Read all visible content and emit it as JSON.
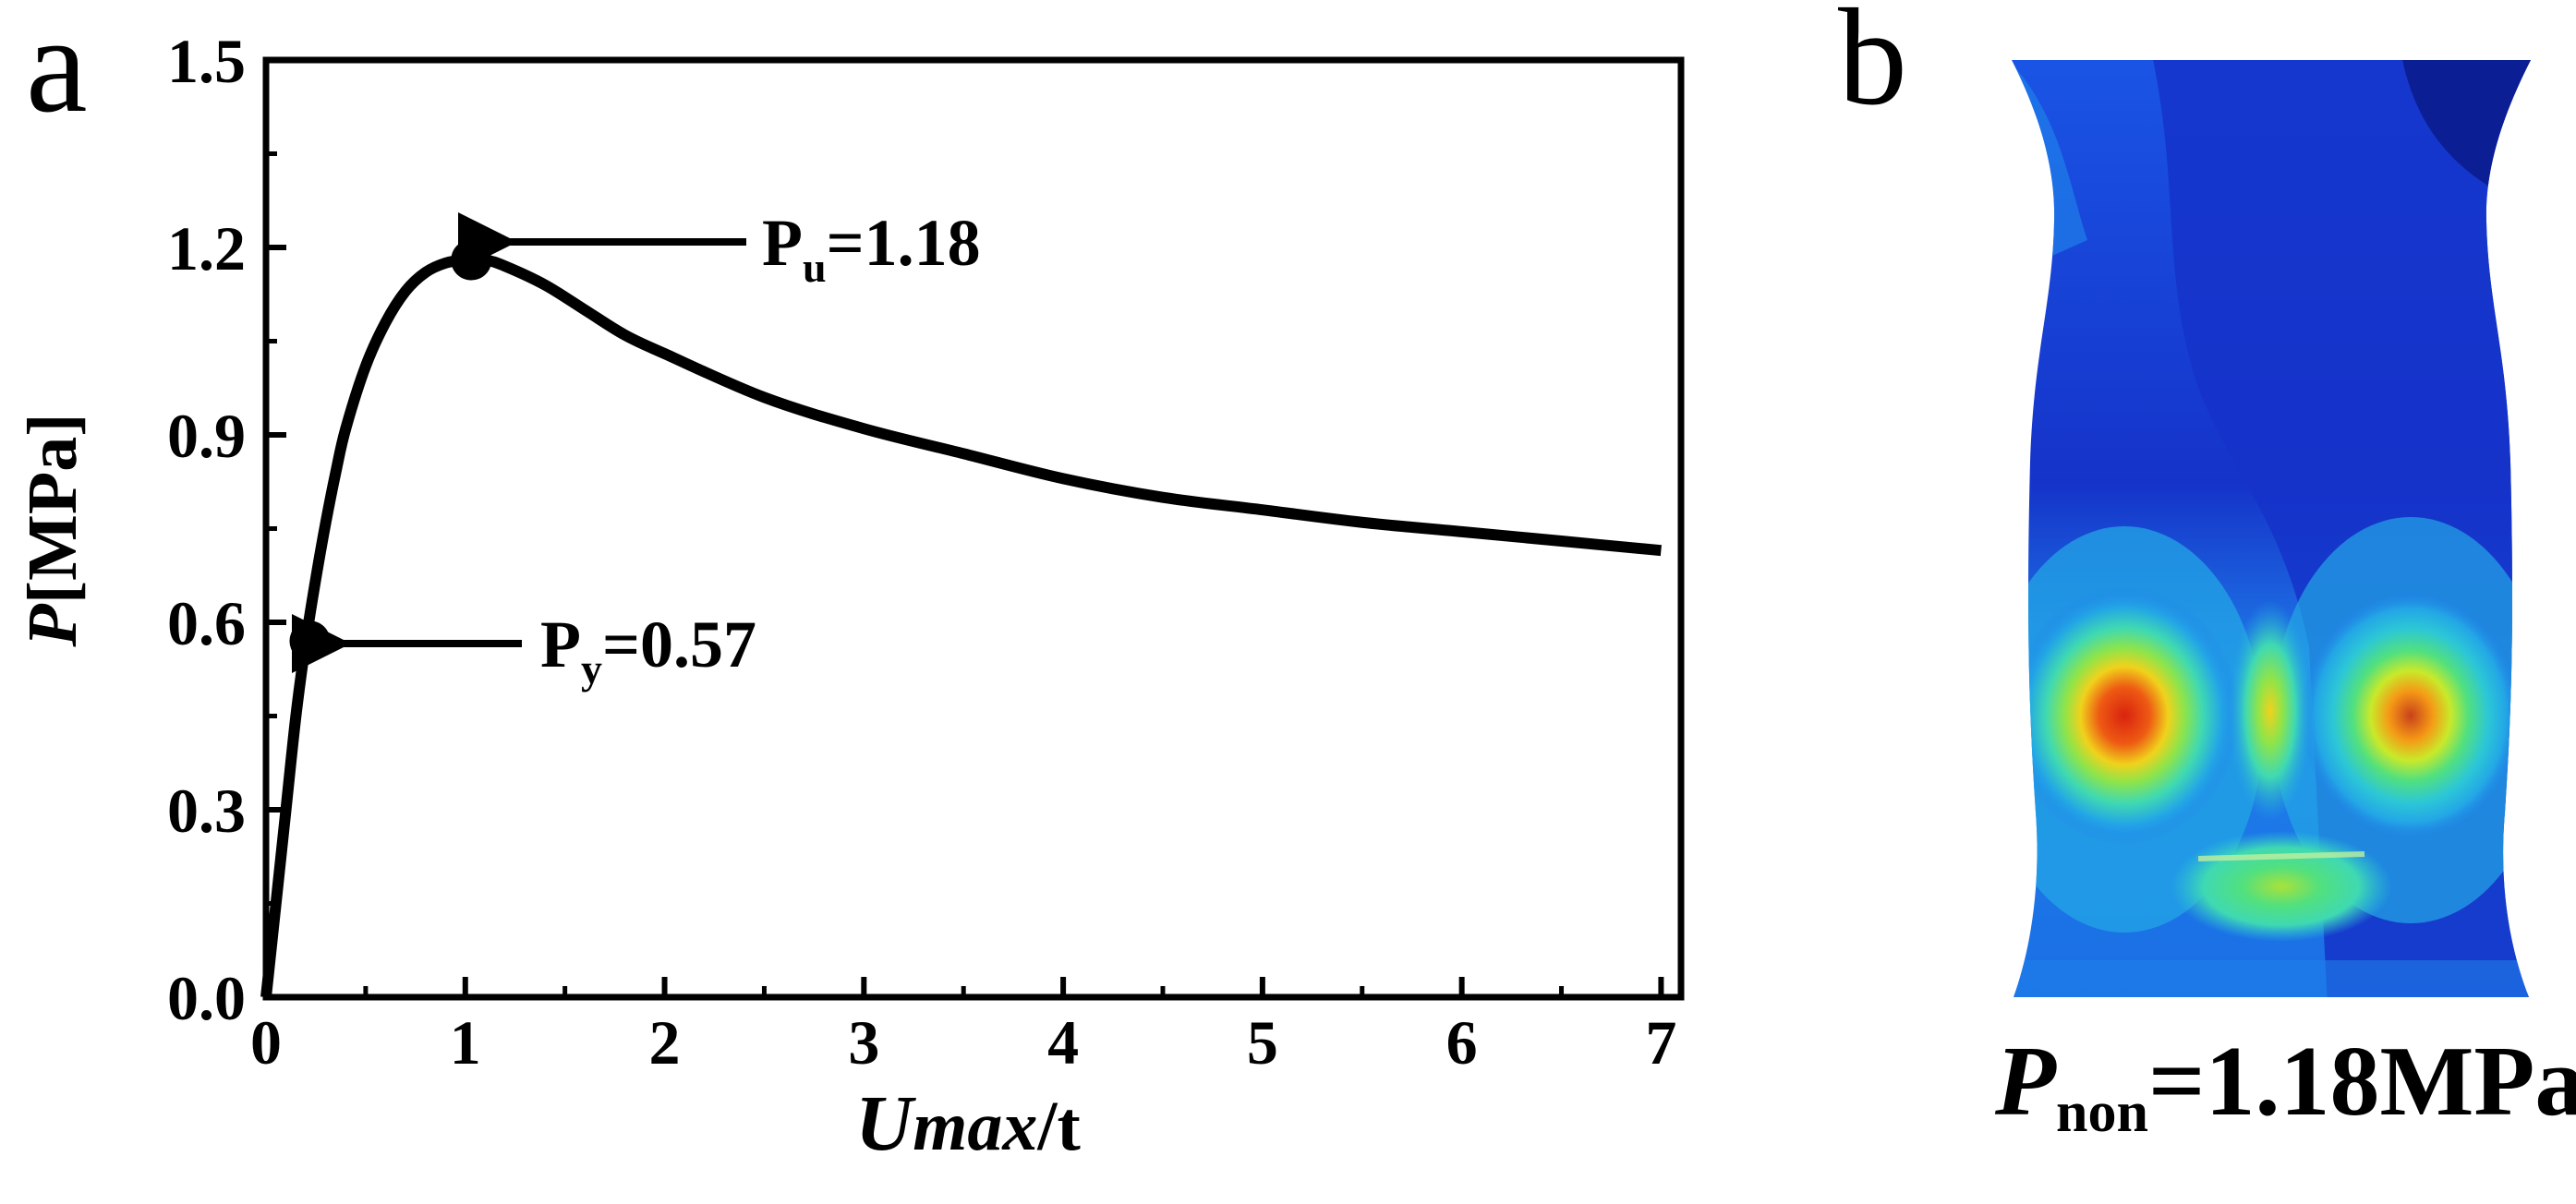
{
  "panels": {
    "a_label": "a",
    "b_label": "b"
  },
  "chart_data": {
    "type": "line",
    "x": [
      0,
      0.05,
      0.1,
      0.15,
      0.2,
      0.25,
      0.3,
      0.35,
      0.4,
      0.5,
      0.6,
      0.7,
      0.8,
      0.9,
      1.0,
      1.1,
      1.2,
      1.4,
      1.6,
      1.8,
      2.0,
      2.5,
      3.0,
      3.5,
      4.0,
      4.5,
      5.0,
      5.5,
      6.0,
      6.5,
      7.0
    ],
    "series": [
      {
        "values": [
          0,
          0.15,
          0.3,
          0.45,
          0.57,
          0.67,
          0.76,
          0.84,
          0.91,
          1.01,
          1.08,
          1.13,
          1.16,
          1.175,
          1.18,
          1.18,
          1.17,
          1.14,
          1.1,
          1.06,
          1.03,
          0.96,
          0.91,
          0.87,
          0.83,
          0.8,
          0.78,
          0.76,
          0.745,
          0.73,
          0.715
        ]
      }
    ],
    "xlabel": "Umax/t",
    "xlabel_parts": {
      "italic": "U",
      "italic_small": "max",
      "plain": "/t"
    },
    "ylabel": "P[MPa]",
    "ylabel_parts": {
      "italic": "P",
      "plain": "[MPa]"
    },
    "xlim": [
      0,
      7.1
    ],
    "ylim": [
      0,
      1.5
    ],
    "xticks": [
      "0",
      "1",
      "2",
      "3",
      "4",
      "5",
      "6",
      "7"
    ],
    "yticks": [
      "0.0",
      "0.3",
      "0.6",
      "0.9",
      "1.2",
      "1.5"
    ],
    "grid": false,
    "markers": [
      {
        "x": 0.22,
        "y": 0.57
      },
      {
        "x": 1.03,
        "y": 1.18
      }
    ],
    "annotations": [
      {
        "letter": "P",
        "sub": "y",
        "rest": "=0.57"
      },
      {
        "letter": "P",
        "sub": "u",
        "rest": "=1.18"
      }
    ]
  },
  "contour": {
    "colors": [
      "#0a1c8e",
      "#1533c9",
      "#1a55e6",
      "#1f7fea",
      "#23a6e6",
      "#2cc7d6",
      "#3fd9b2",
      "#52e07e",
      "#8ee44a",
      "#c9e92a",
      "#f0d21c",
      "#f59a16",
      "#ee5a13",
      "#d9230f"
    ],
    "caption_letter": "P",
    "caption_sub": "non",
    "caption_rest": "=1.18MPa"
  }
}
